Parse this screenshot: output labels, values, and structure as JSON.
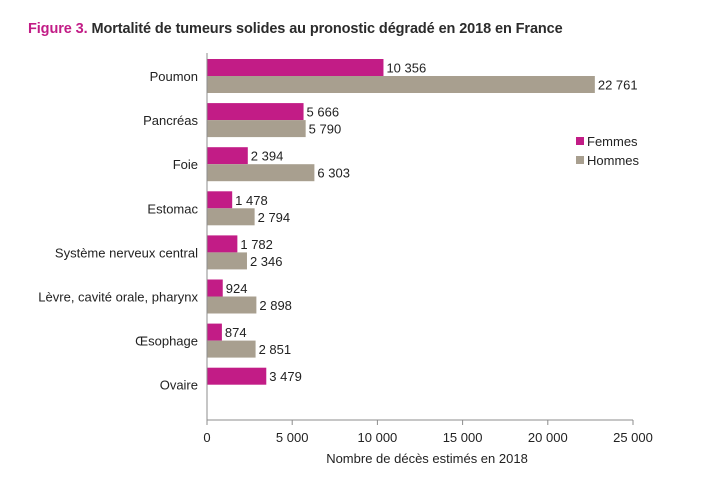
{
  "figure_label": "Figure 3.",
  "title_text": "Mortalité de tumeurs solides au pronostic dégradé en 2018 en France",
  "chart_data": {
    "type": "bar",
    "orientation": "horizontal",
    "categories": [
      "Poumon",
      "Pancréas",
      "Foie",
      "Estomac",
      "Système nerveux central",
      "Lèvre, cavité orale, pharynx",
      "Œsophage",
      "Ovaire"
    ],
    "series": [
      {
        "name": "Femmes",
        "color": "#c21c86",
        "values": [
          10356,
          5666,
          2394,
          1478,
          1782,
          924,
          874,
          3479
        ],
        "labels": [
          "10 356",
          "5 666",
          "2 394",
          "1 478",
          "1 782",
          "924",
          "874",
          "3 479"
        ]
      },
      {
        "name": "Hommes",
        "color": "#a89f8f",
        "values": [
          22761,
          5790,
          6303,
          2794,
          2346,
          2898,
          2851,
          null
        ],
        "labels": [
          "22 761",
          "5 790",
          "6 303",
          "2 794",
          "2 346",
          "2 898",
          "2 851",
          null
        ]
      }
    ],
    "xlabel": "Nombre de décès estimés en 2018",
    "xlim": [
      0,
      25000
    ],
    "xticks": [
      0,
      5000,
      10000,
      15000,
      20000,
      25000
    ],
    "xtick_labels": [
      "0",
      "5 000",
      "10 000",
      "15 000",
      "20 000",
      "25 000"
    ],
    "legend_position": "right",
    "grid": false
  }
}
